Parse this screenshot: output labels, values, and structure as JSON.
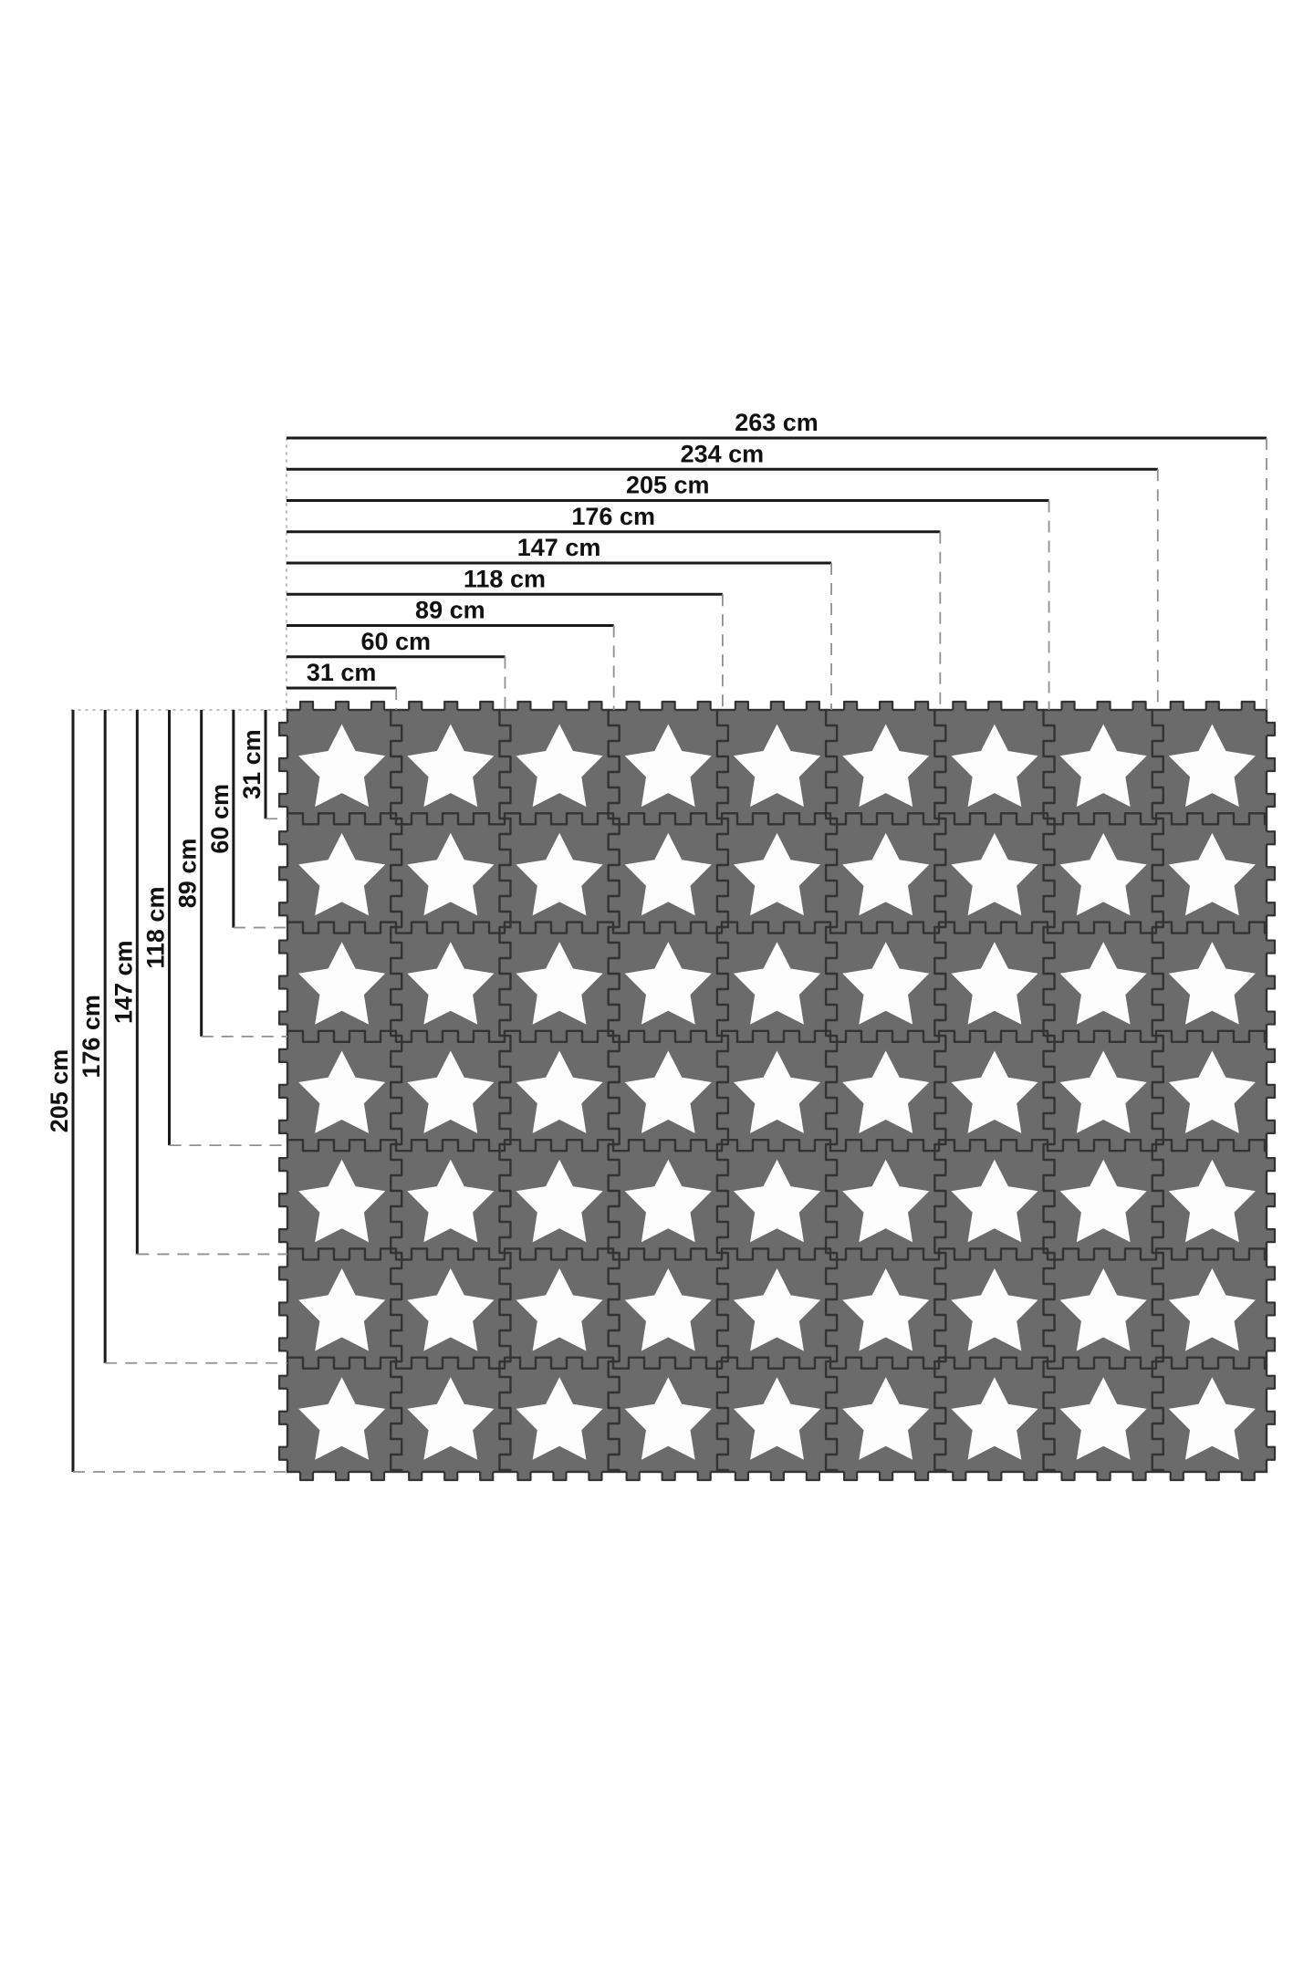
{
  "diagram": {
    "unit": "cm",
    "top_dimensions": [
      {
        "label": "263 cm",
        "value_cm": 263,
        "tiles": 9
      },
      {
        "label": "234 cm",
        "value_cm": 234,
        "tiles": 8
      },
      {
        "label": "205 cm",
        "value_cm": 205,
        "tiles": 7
      },
      {
        "label": "176 cm",
        "value_cm": 176,
        "tiles": 6
      },
      {
        "label": "147 cm",
        "value_cm": 147,
        "tiles": 5
      },
      {
        "label": "118 cm",
        "value_cm": 118,
        "tiles": 4
      },
      {
        "label": "89 cm",
        "value_cm": 89,
        "tiles": 3
      },
      {
        "label": "60 cm",
        "value_cm": 60,
        "tiles": 2
      },
      {
        "label": "31 cm",
        "value_cm": 31,
        "tiles": 1
      }
    ],
    "left_dimensions": [
      {
        "label": "205 cm",
        "value_cm": 205,
        "tiles": 7
      },
      {
        "label": "176 cm",
        "value_cm": 176,
        "tiles": 6
      },
      {
        "label": "147 cm",
        "value_cm": 147,
        "tiles": 5
      },
      {
        "label": "118 cm",
        "value_cm": 118,
        "tiles": 4
      },
      {
        "label": "89 cm",
        "value_cm": 89,
        "tiles": 3
      },
      {
        "label": "60 cm",
        "value_cm": 60,
        "tiles": 2
      },
      {
        "label": "31 cm",
        "value_cm": 31,
        "tiles": 1
      }
    ],
    "mat": {
      "rows": 7,
      "cols": 9,
      "tile_pattern": "star"
    },
    "colors": {
      "background": "#ffffff",
      "tile": "#6b6b6b",
      "star": "#fdfdfd",
      "seam": "#333333",
      "dimension_line": "#1a1a1a",
      "label_text": "#111111",
      "dashed_guide": "#909090",
      "dotted_guide": "#b8b8b8"
    }
  }
}
